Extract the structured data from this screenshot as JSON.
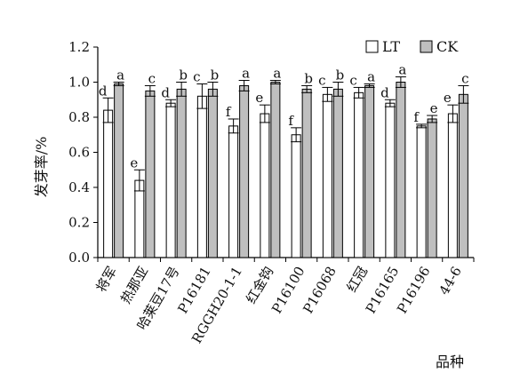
{
  "chart_data": {
    "type": "bar",
    "ylabel": "发芽率/%",
    "xlabel": "品种",
    "ylim": [
      0,
      1.2
    ],
    "yticks": [
      "0.0",
      "0.2",
      "0.4",
      "0.6",
      "0.8",
      "1.0",
      "1.2"
    ],
    "legend_position": "top-right",
    "categories": [
      "将军",
      "热那亚",
      "哈莱豆17号",
      "P16181",
      "RGGH20-1-1",
      "红金钩",
      "P16100",
      "P16068",
      "红冠",
      "P16165",
      "P16196",
      "44-6"
    ],
    "series": [
      {
        "name": "LT",
        "color": "#ffffff",
        "values": [
          0.84,
          0.44,
          0.88,
          0.92,
          0.75,
          0.82,
          0.7,
          0.93,
          0.94,
          0.88,
          0.75,
          0.82
        ],
        "errors": [
          0.07,
          0.06,
          0.02,
          0.07,
          0.04,
          0.05,
          0.04,
          0.04,
          0.03,
          0.02,
          0.01,
          0.05
        ],
        "letters": [
          "d",
          "e",
          "d",
          "c",
          "f",
          "e",
          "f",
          "c",
          "c",
          "d",
          "f",
          "e"
        ]
      },
      {
        "name": "CK",
        "color": "#bfbfbf",
        "values": [
          0.99,
          0.95,
          0.96,
          0.96,
          0.98,
          1.0,
          0.96,
          0.96,
          0.98,
          1.0,
          0.79,
          0.93
        ],
        "errors": [
          0.01,
          0.03,
          0.04,
          0.04,
          0.03,
          0.01,
          0.02,
          0.04,
          0.01,
          0.03,
          0.02,
          0.05
        ],
        "letters": [
          "a",
          "c",
          "b",
          "b",
          "a",
          "a",
          "b",
          "b",
          "a",
          "a",
          "e",
          "c"
        ]
      }
    ]
  }
}
